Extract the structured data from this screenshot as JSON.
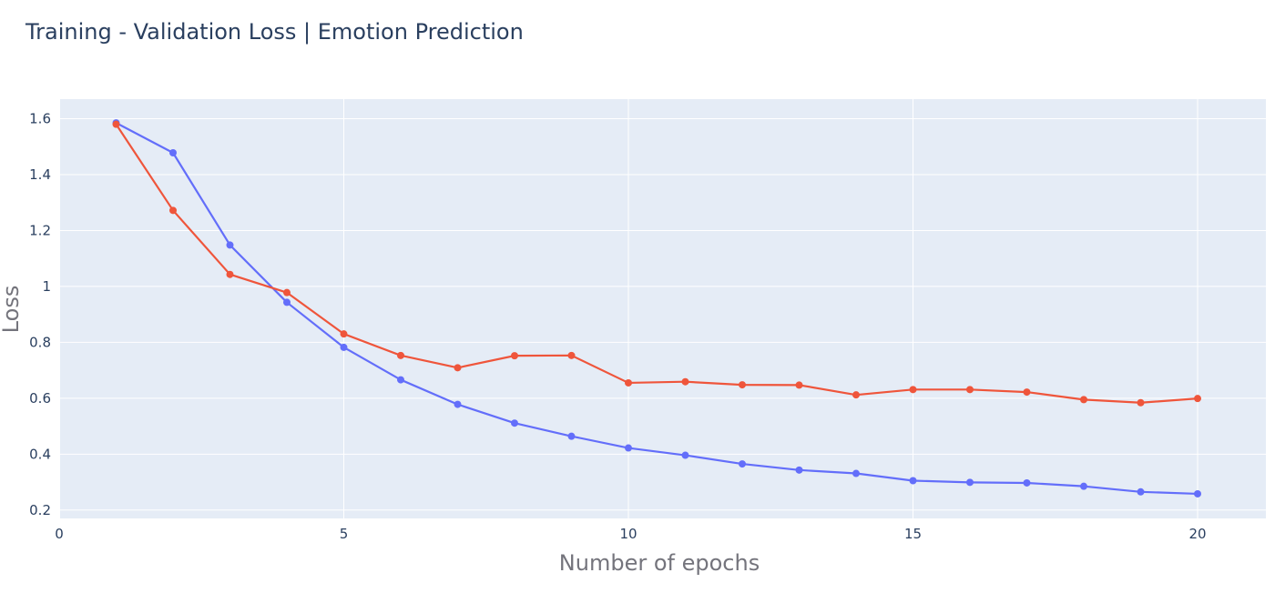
{
  "colors": {
    "plot_background": "#e5ecf6",
    "grid": "#ffffff",
    "title": "#2a3f5f",
    "tick_text": "#2a3f5f",
    "axis_title": "#74747c"
  },
  "chart_data": {
    "type": "line",
    "title": "Training - Validation Loss | Emotion Prediction",
    "xlabel": "Number of epochs",
    "ylabel": "Loss",
    "xlim": [
      0,
      21.2
    ],
    "ylim": [
      0.17,
      1.67
    ],
    "xticks": [
      0,
      5,
      10,
      15,
      20
    ],
    "xtick_labels": [
      "0",
      "5",
      "10",
      "15",
      "20"
    ],
    "yticks": [
      0.2,
      0.4,
      0.6,
      0.8,
      1,
      1.2,
      1.4,
      1.6
    ],
    "ytick_labels": [
      "0.2",
      "0.4",
      "0.6",
      "0.8",
      "1",
      "1.2",
      "1.4",
      "1.6"
    ],
    "grid": true,
    "x": [
      1,
      2,
      3,
      4,
      5,
      6,
      7,
      8,
      9,
      10,
      11,
      12,
      13,
      14,
      15,
      16,
      17,
      18,
      19,
      20
    ],
    "series": [
      {
        "color": "#636efa",
        "values": [
          1.585,
          1.478,
          1.148,
          0.943,
          0.782,
          0.666,
          0.578,
          0.511,
          0.464,
          0.422,
          0.396,
          0.365,
          0.343,
          0.331,
          0.305,
          0.299,
          0.297,
          0.285,
          0.265,
          0.258
        ]
      },
      {
        "color": "#ef553b",
        "values": [
          1.58,
          1.272,
          1.043,
          0.978,
          0.83,
          0.753,
          0.709,
          0.752,
          0.753,
          0.655,
          0.659,
          0.648,
          0.647,
          0.612,
          0.631,
          0.631,
          0.622,
          0.595,
          0.584,
          0.599
        ]
      }
    ]
  }
}
